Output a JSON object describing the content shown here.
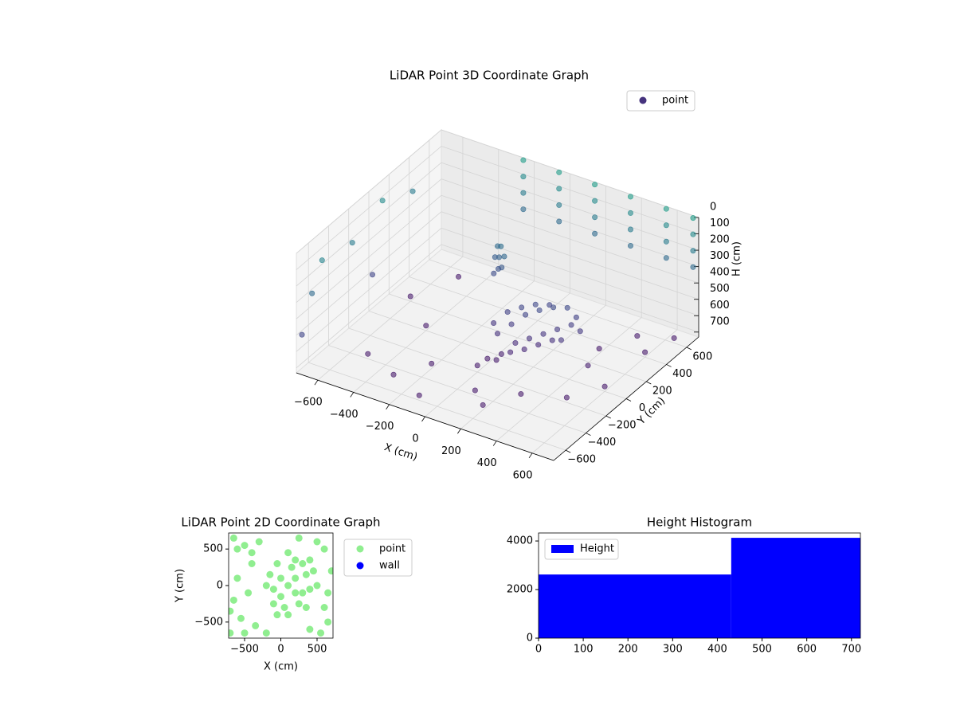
{
  "chart_data": [
    {
      "type": "scatter3d",
      "title": "LiDAR Point 3D Coordinate Graph",
      "xlabel": "X (cm)",
      "ylabel": "Y (cm)",
      "zlabel": "H (cm)",
      "xlim": [
        -720,
        720
      ],
      "ylim": [
        -720,
        720
      ],
      "zlim": [
        0,
        730
      ],
      "z_inverted": true,
      "grid": true,
      "legend": "upper right",
      "colormap": "viridis",
      "xticks": [
        {
          "value": -600,
          "label": "−600"
        },
        {
          "value": -400,
          "label": "−400"
        },
        {
          "value": -200,
          "label": "−200"
        },
        0,
        200,
        400,
        600
      ],
      "yticks": [
        {
          "value": -600,
          "label": "−600"
        },
        {
          "value": -400,
          "label": "−400"
        },
        {
          "value": -200,
          "label": "−200"
        },
        0,
        200,
        400,
        600
      ],
      "zticks": [
        0,
        100,
        200,
        300,
        400,
        500,
        600,
        700
      ],
      "series": [
        {
          "name": "point",
          "color": "#46337e",
          "points": [
            [
              -250,
              700,
              0
            ],
            [
              -250,
              700,
              100
            ],
            [
              -250,
              700,
              200
            ],
            [
              -250,
              700,
              300
            ],
            [
              -50,
              700,
              0
            ],
            [
              -50,
              700,
              100
            ],
            [
              -50,
              700,
              200
            ],
            [
              -50,
              700,
              300
            ],
            [
              150,
              700,
              0
            ],
            [
              150,
              700,
              100
            ],
            [
              150,
              700,
              200
            ],
            [
              150,
              700,
              300
            ],
            [
              350,
              700,
              0
            ],
            [
              350,
              700,
              100
            ],
            [
              350,
              700,
              200
            ],
            [
              350,
              700,
              300
            ],
            [
              550,
              700,
              0
            ],
            [
              550,
              700,
              100
            ],
            [
              550,
              700,
              200
            ],
            [
              550,
              700,
              300
            ],
            [
              700,
              700,
              0
            ],
            [
              700,
              700,
              100
            ],
            [
              700,
              700,
              200
            ],
            [
              700,
              700,
              300
            ],
            [
              -700,
              -500,
              150
            ],
            [
              -700,
              -200,
              200
            ],
            [
              -700,
              100,
              100
            ],
            [
              -700,
              400,
              200
            ],
            [
              -700,
              -600,
              300
            ],
            [
              -700,
              -700,
              500
            ],
            [
              -700,
              0,
              500
            ],
            [
              0,
              0,
              600
            ],
            [
              50,
              50,
              550
            ],
            [
              100,
              100,
              500
            ],
            [
              150,
              150,
              480
            ],
            [
              200,
              200,
              470
            ],
            [
              250,
              250,
              480
            ],
            [
              100,
              0,
              620
            ],
            [
              150,
              50,
              600
            ],
            [
              200,
              100,
              580
            ],
            [
              250,
              150,
              560
            ],
            [
              300,
              200,
              540
            ],
            [
              50,
              -50,
              680
            ],
            [
              100,
              -50,
              650
            ],
            [
              150,
              0,
              640
            ],
            [
              200,
              50,
              620
            ],
            [
              250,
              100,
              600
            ],
            [
              300,
              100,
              580
            ],
            [
              0,
              100,
              520
            ],
            [
              50,
              150,
              500
            ],
            [
              100,
              200,
              490
            ],
            [
              150,
              250,
              500
            ],
            [
              -50,
              50,
              580
            ],
            [
              0,
              -100,
              700
            ],
            [
              50,
              -100,
              690
            ],
            [
              350,
              200,
              560
            ],
            [
              300,
              250,
              520
            ],
            [
              -150,
              300,
              280
            ],
            [
              -180,
              320,
              300
            ],
            [
              -120,
              280,
              320
            ],
            [
              -160,
              300,
              350
            ],
            [
              -200,
              330,
              380
            ],
            [
              -140,
              290,
              400
            ],
            [
              -170,
              310,
              430
            ],
            [
              -190,
              300,
              460
            ],
            [
              -500,
              -400,
              700
            ],
            [
              -300,
              -500,
              700
            ],
            [
              -100,
              -600,
              700
            ],
            [
              100,
              -400,
              700
            ],
            [
              300,
              -300,
              700
            ],
            [
              500,
              -200,
              700
            ],
            [
              600,
              0,
              700
            ],
            [
              400,
              300,
              700
            ],
            [
              600,
              400,
              700
            ],
            [
              -400,
              0,
              700
            ],
            [
              -600,
              200,
              700
            ],
            [
              0,
              -200,
              690
            ],
            [
              200,
              -500,
              700
            ],
            [
              -200,
              -300,
              700
            ],
            [
              450,
              100,
              680
            ],
            [
              650,
              600,
              700
            ],
            [
              500,
              500,
              690
            ],
            [
              -500,
              500,
              700
            ]
          ]
        }
      ]
    },
    {
      "type": "scatter",
      "title": "LiDAR Point 2D Coordinate Graph",
      "xlabel": "X (cm)",
      "ylabel": "Y (cm)",
      "xlim": [
        -720,
        720
      ],
      "ylim": [
        -720,
        720
      ],
      "legend": "right",
      "xticks": [
        {
          "value": -500,
          "label": "−500"
        },
        0,
        500
      ],
      "yticks": [
        {
          "value": -500,
          "label": "−500"
        },
        0,
        500
      ],
      "series": [
        {
          "name": "point",
          "color": "#90ee90",
          "points": [
            [
              100,
              0
            ],
            [
              200,
              100
            ],
            [
              0,
              100
            ],
            [
              300,
              -100
            ],
            [
              -100,
              -50
            ],
            [
              150,
              250
            ],
            [
              250,
              -250
            ],
            [
              50,
              -300
            ],
            [
              -50,
              300
            ],
            [
              350,
              150
            ],
            [
              400,
              -50
            ],
            [
              -150,
              150
            ],
            [
              200,
              350
            ],
            [
              100,
              -400
            ],
            [
              -100,
              -250
            ],
            [
              300,
              300
            ],
            [
              450,
              200
            ],
            [
              0,
              -150
            ],
            [
              200,
              -100
            ],
            [
              -200,
              0
            ],
            [
              350,
              -300
            ],
            [
              100,
              450
            ],
            [
              -50,
              -400
            ],
            [
              400,
              350
            ],
            [
              500,
              0
            ],
            [
              -600,
              500
            ],
            [
              -500,
              550
            ],
            [
              -650,
              -200
            ],
            [
              -550,
              -450
            ],
            [
              -700,
              -650
            ],
            [
              -400,
              300
            ],
            [
              -450,
              -100
            ],
            [
              -600,
              100
            ],
            [
              -350,
              -550
            ],
            [
              -500,
              -650
            ],
            [
              600,
              500
            ],
            [
              650,
              -500
            ],
            [
              550,
              -650
            ],
            [
              700,
              200
            ],
            [
              -300,
              600
            ],
            [
              250,
              650
            ],
            [
              -200,
              -650
            ],
            [
              600,
              -300
            ],
            [
              -650,
              650
            ],
            [
              500,
              600
            ],
            [
              -700,
              -350
            ],
            [
              650,
              -100
            ],
            [
              -400,
              450
            ],
            [
              400,
              -600
            ]
          ]
        },
        {
          "name": "wall",
          "color": "#0000ff",
          "points": []
        }
      ]
    },
    {
      "type": "histogram",
      "title": "Height Histogram",
      "legend": "upper left",
      "xlim": [
        0,
        720
      ],
      "ylim": [
        0,
        4330
      ],
      "xticks": [
        0,
        100,
        200,
        300,
        400,
        500,
        600,
        700
      ],
      "yticks": [
        0,
        2000,
        4000
      ],
      "bins": [
        0,
        431,
        720
      ],
      "series": [
        {
          "name": "Height",
          "color": "#0000ff",
          "values": [
            2620,
            4130
          ]
        }
      ]
    }
  ]
}
